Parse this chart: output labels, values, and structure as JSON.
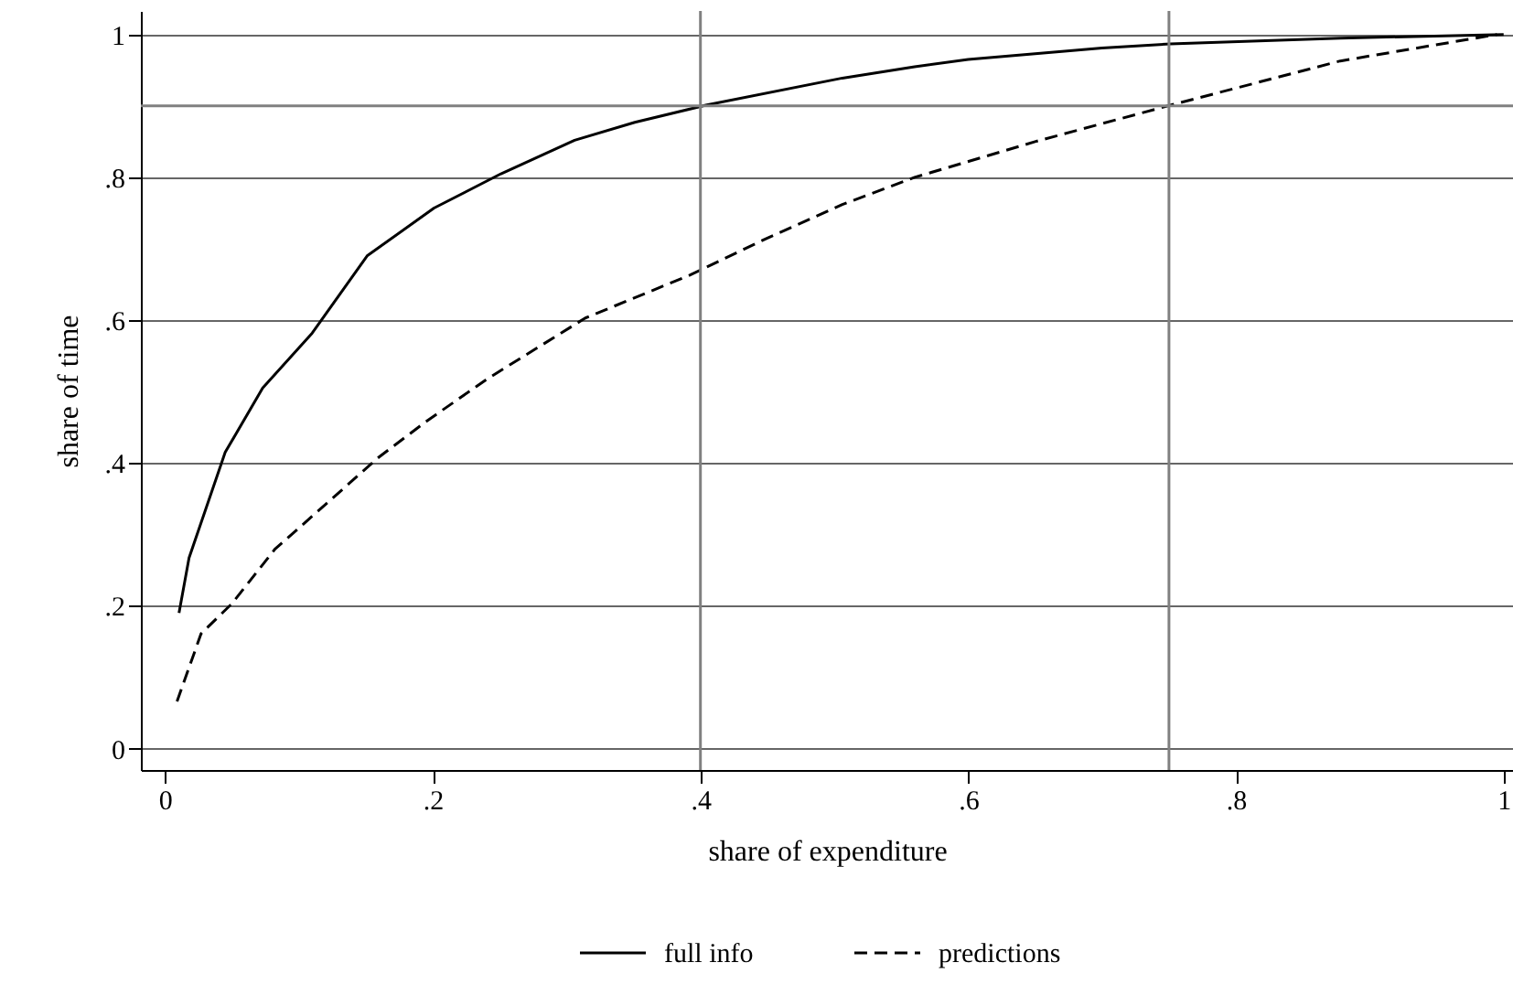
{
  "chart_data": {
    "type": "line",
    "xlabel": "share of expenditure",
    "ylabel": "share of time",
    "xlim": [
      -0.018,
      1.007
    ],
    "ylim": [
      -0.03,
      1.033
    ],
    "xticks": [
      {
        "value": 0,
        "label": "0"
      },
      {
        "value": 0.2,
        "label": ".2"
      },
      {
        "value": 0.4,
        "label": ".4"
      },
      {
        "value": 0.6,
        "label": ".6"
      },
      {
        "value": 0.8,
        "label": ".8"
      },
      {
        "value": 1,
        "label": "1"
      }
    ],
    "yticks": [
      {
        "value": 0,
        "label": "0"
      },
      {
        "value": 0.2,
        "label": ".2"
      },
      {
        "value": 0.4,
        "label": ".4"
      },
      {
        "value": 0.6,
        "label": ".6"
      },
      {
        "value": 0.8,
        "label": ".8"
      },
      {
        "value": 1,
        "label": "1"
      }
    ],
    "grid": "y",
    "legend": "bottom",
    "marker": "none",
    "ref_lines": [
      {
        "axis": "x",
        "value": 0.4,
        "color": "#808080"
      },
      {
        "axis": "x",
        "value": 0.75,
        "color": "#808080"
      },
      {
        "axis": "y",
        "value": 0.9,
        "color": "#808080"
      }
    ],
    "series": [
      {
        "name": "full info",
        "color": "#000000",
        "line_style": "solid",
        "x": [
          0.0105,
          0.018,
          0.045,
          0.073,
          0.11,
          0.151,
          0.201,
          0.251,
          0.306,
          0.351,
          0.404,
          0.506,
          0.56,
          0.6,
          0.7,
          0.751,
          0.878,
          1.0
        ],
        "values": [
          0.19,
          0.267,
          0.415,
          0.505,
          0.582,
          0.69,
          0.757,
          0.805,
          0.852,
          0.877,
          0.901,
          0.939,
          0.955,
          0.965,
          0.981,
          0.987,
          0.995,
          1.0
        ]
      },
      {
        "name": "predictions",
        "color": "#000000",
        "line_style": "dashed",
        "x": [
          0.009,
          0.027,
          0.05,
          0.082,
          0.123,
          0.159,
          0.195,
          0.241,
          0.314,
          0.392,
          0.45,
          0.506,
          0.56,
          0.65,
          0.751,
          0.878,
          0.995
        ],
        "values": [
          0.066,
          0.161,
          0.203,
          0.279,
          0.347,
          0.407,
          0.458,
          0.518,
          0.603,
          0.663,
          0.715,
          0.762,
          0.8,
          0.85,
          0.901,
          0.963,
          1.0
        ]
      }
    ]
  }
}
